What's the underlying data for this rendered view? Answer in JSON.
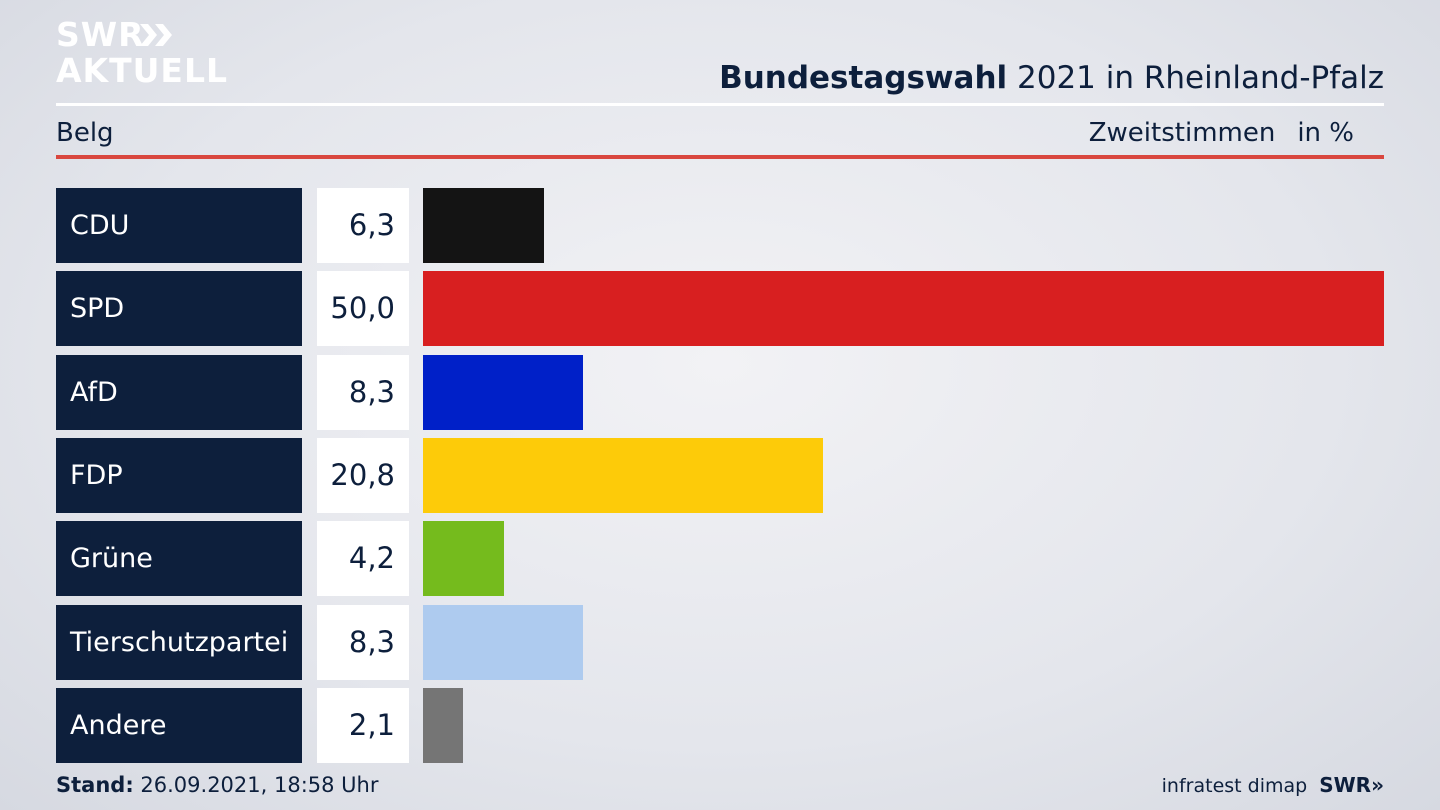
{
  "branding": {
    "logo_line1": "SWR",
    "logo_line2": "AKTUELL",
    "footer_brand": "SWR»",
    "footer_source": "infratest dimap"
  },
  "header": {
    "title_bold": "Bundestagswahl",
    "title_rest": " 2021 in Rheinland-Pfalz",
    "location": "Belg",
    "measure": "Zweitstimmen",
    "unit": "in %"
  },
  "footer": {
    "stand_label": "Stand:",
    "stand_value": " 26.09.2021, 18:58 Uhr"
  },
  "chart_data": {
    "type": "bar",
    "orientation": "horizontal",
    "categories": [
      "CDU",
      "SPD",
      "AfD",
      "FDP",
      "Grüne",
      "Tierschutzpartei",
      "Andere"
    ],
    "values": [
      6.3,
      50.0,
      8.3,
      20.8,
      4.2,
      8.3,
      2.1
    ],
    "value_labels": [
      "6,3",
      "50,0",
      "8,3",
      "20,8",
      "4,2",
      "8,3",
      "2,1"
    ],
    "colors": [
      "#141414",
      "#d81f20",
      "#0020c8",
      "#fdcb09",
      "#75bb1d",
      "#aecbef",
      "#757575"
    ],
    "xlim": [
      0,
      50
    ],
    "grid": false,
    "legend": "none"
  }
}
